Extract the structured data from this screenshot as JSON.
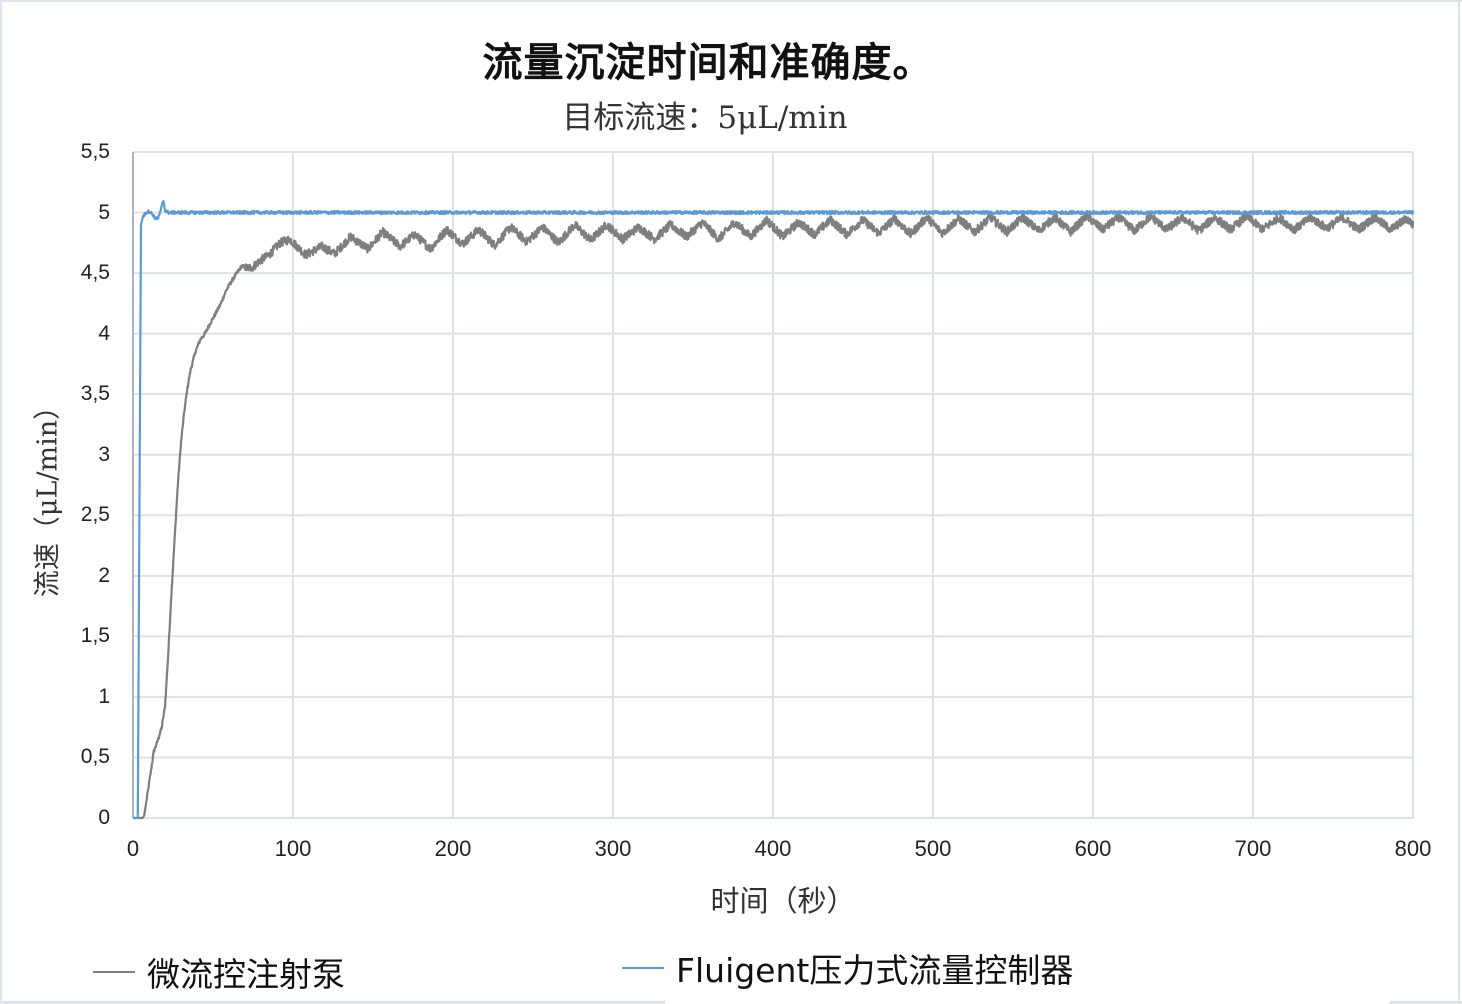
{
  "chart_data": {
    "type": "line",
    "title": "流量沉淀时间和准确度。",
    "subtitle": "目标流速：5μL/min",
    "xlabel": "时间（秒）",
    "ylabel": "流速（μL/min）",
    "xlim": [
      0,
      800
    ],
    "ylim": [
      0,
      5.5
    ],
    "grid": true,
    "legend_position": "bottom",
    "x_ticks": [
      "0",
      "100",
      "200",
      "300",
      "400",
      "500",
      "600",
      "700",
      "800"
    ],
    "y_ticks": [
      "0",
      "0,5",
      "1",
      "1,5",
      "2",
      "2,5",
      "3",
      "3,5",
      "4",
      "4,5",
      "5",
      "5,5"
    ],
    "series": [
      {
        "name": "微流控注射泵",
        "color": "#7f7f7f",
        "x": [
          0,
          6,
          7,
          10,
          13,
          15,
          18,
          20,
          22,
          24,
          26,
          28,
          30,
          32,
          34,
          36,
          39,
          42,
          45,
          48,
          51,
          55,
          58,
          61,
          65,
          68,
          71,
          75,
          79,
          85,
          92,
          98,
          108,
          118,
          126,
          136,
          147,
          156,
          167,
          176,
          186,
          196,
          206,
          216,
          226,
          236,
          246,
          256,
          266,
          276,
          286,
          296,
          306,
          316,
          326,
          336,
          346,
          356,
          366,
          376,
          386,
          396,
          406,
          416,
          426,
          436,
          446,
          456,
          466,
          476,
          486,
          496,
          506,
          516,
          526,
          536,
          546,
          556,
          566,
          576,
          586,
          596,
          606,
          616,
          626,
          636,
          646,
          656,
          666,
          676,
          686,
          696,
          706,
          716,
          726,
          736,
          746,
          756,
          766,
          776,
          786,
          796,
          800
        ],
        "values": [
          0,
          0,
          0.02,
          0.28,
          0.55,
          0.62,
          0.75,
          0.92,
          1.35,
          1.85,
          2.3,
          2.75,
          3.1,
          3.35,
          3.55,
          3.7,
          3.85,
          3.95,
          4.0,
          4.08,
          4.15,
          4.25,
          4.35,
          4.42,
          4.5,
          4.56,
          4.54,
          4.55,
          4.6,
          4.65,
          4.75,
          4.78,
          4.65,
          4.72,
          4.66,
          4.8,
          4.7,
          4.84,
          4.72,
          4.82,
          4.7,
          4.86,
          4.74,
          4.86,
          4.73,
          4.88,
          4.76,
          4.88,
          4.75,
          4.9,
          4.77,
          4.9,
          4.78,
          4.88,
          4.78,
          4.9,
          4.8,
          4.92,
          4.78,
          4.92,
          4.8,
          4.94,
          4.8,
          4.92,
          4.82,
          4.94,
          4.82,
          4.94,
          4.83,
          4.95,
          4.82,
          4.96,
          4.83,
          4.95,
          4.84,
          4.96,
          4.84,
          4.96,
          4.85,
          4.96,
          4.84,
          4.97,
          4.86,
          4.96,
          4.85,
          4.97,
          4.86,
          4.96,
          4.85,
          4.96,
          4.86,
          4.97,
          4.86,
          4.96,
          4.86,
          4.96,
          4.87,
          4.96,
          4.86,
          4.96,
          4.86,
          4.95,
          4.9
        ]
      },
      {
        "name": "Fluigent压力式流量控制器",
        "color": "#5b9bd5",
        "x": [
          0,
          3,
          4,
          5,
          6,
          8,
          10,
          12,
          14,
          16,
          18,
          19,
          20,
          22,
          25,
          30,
          40,
          60,
          100,
          200,
          300,
          400,
          500,
          600,
          700,
          800
        ],
        "values": [
          0,
          0,
          2.5,
          4.9,
          4.96,
          5.0,
          5.01,
          4.99,
          4.95,
          4.96,
          5.05,
          5.1,
          5.02,
          5.0,
          5.0,
          5.0,
          5.0,
          5.0,
          5.0,
          5.0,
          5.0,
          5.0,
          5.0,
          5.0,
          5.0,
          5.0
        ]
      }
    ]
  },
  "style": {
    "grid_color": "#dde1e8",
    "axis_color": "#a8b4cc",
    "frame_color": "#dfe3ea"
  }
}
